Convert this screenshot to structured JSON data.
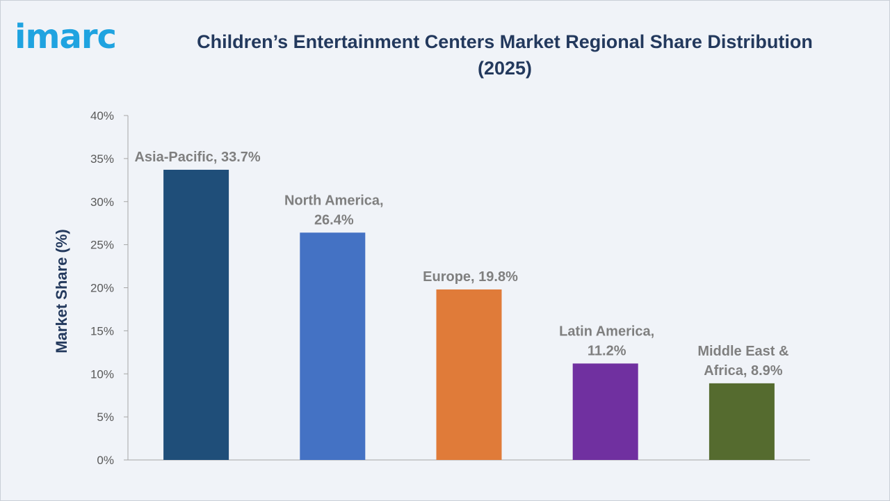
{
  "brand": {
    "logo_text": "imarc"
  },
  "header": {
    "title_line1": "Children’s Entertainment Centers Market Regional Share Distribution",
    "title_line2": "(2025)"
  },
  "chart_data": {
    "type": "bar",
    "title": "Children’s Entertainment Centers Market Regional Share Distribution (2025)",
    "xlabel": "",
    "ylabel": "Market Share (%)",
    "ylim": [
      0,
      40
    ],
    "yticks": [
      "0%",
      "5%",
      "10%",
      "15%",
      "20%",
      "25%",
      "30%",
      "35%",
      "40%"
    ],
    "categories": [
      "Asia-Pacific",
      "North America",
      "Europe",
      "Latin America",
      "Middle East & Africa"
    ],
    "values": [
      33.7,
      26.4,
      19.8,
      11.2,
      8.9
    ],
    "data_labels": [
      [
        "Asia-Pacific, 33.7%"
      ],
      [
        "North America,",
        "26.4%"
      ],
      [
        "Europe, 19.8%"
      ],
      [
        "Latin America,",
        "11.2%"
      ],
      [
        "Middle East &",
        "Africa, 8.9%"
      ]
    ],
    "colors": [
      "#1f4e79",
      "#4472c4",
      "#e07b39",
      "#7030a0",
      "#556b2f"
    ],
    "grid": false,
    "legend": "none"
  }
}
